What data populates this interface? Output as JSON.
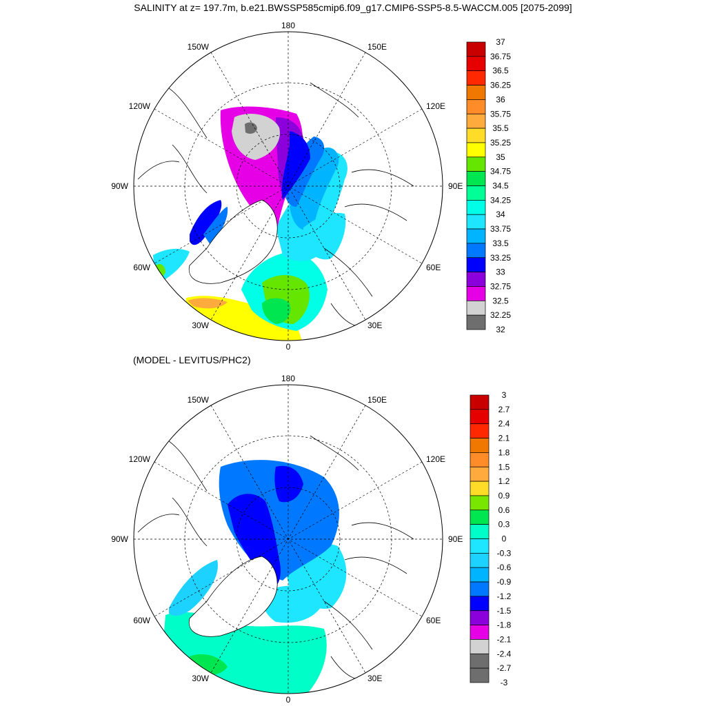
{
  "title": "SALINITY at z= 197.7m, b.e21.BWSSP585cmip6.f09_g17.CMIP6-SSP5-8.5-WACCM.005 [2075-2099]",
  "subtitle": "(MODEL - LEVITUS/PHC2)",
  "longitude_labels": {
    "top": "180",
    "bottom": "0",
    "left": "90W",
    "right": "90E",
    "upper_left_1": "150W",
    "upper_left_2": "120W",
    "upper_right_1": "150E",
    "upper_right_2": "120E",
    "lower_left_1": "60W",
    "lower_left_2": "30W",
    "lower_right_1": "60E",
    "lower_right_2": "30E"
  },
  "colorbar_top": {
    "labels": [
      "37",
      "36.75",
      "36.5",
      "36.25",
      "36",
      "35.75",
      "35.5",
      "35.25",
      "35",
      "34.75",
      "34.5",
      "34.25",
      "34",
      "33.75",
      "33.5",
      "33.25",
      "33",
      "32.75",
      "32.5",
      "32.25",
      "32"
    ],
    "colors": [
      "#c80000",
      "#e60000",
      "#ff2800",
      "#f07800",
      "#ff8c28",
      "#ffaa3c",
      "#ffdc28",
      "#ffff00",
      "#64e600",
      "#00e650",
      "#00ff96",
      "#00ffe6",
      "#1ee6ff",
      "#00b4ff",
      "#0078ff",
      "#0000ff",
      "#8c00dc",
      "#e600e6",
      "#d2d2d2",
      "#6e6e6e"
    ]
  },
  "colorbar_bottom": {
    "labels": [
      "3",
      "2.7",
      "2.4",
      "2.1",
      "1.8",
      "1.5",
      "1.2",
      "0.9",
      "0.6",
      "0.3",
      "0",
      "-0.3",
      "-0.6",
      "-0.9",
      "-1.2",
      "-1.5",
      "-1.8",
      "-2.1",
      "-2.4",
      "-2.7",
      "-3"
    ],
    "colors": [
      "#c80000",
      "#e60000",
      "#ff2800",
      "#f07800",
      "#ff8c28",
      "#ffaa3c",
      "#ffdc28",
      "#78e600",
      "#00e650",
      "#00ffc8",
      "#1ee6ff",
      "#1ed2ff",
      "#00b4ff",
      "#0078ff",
      "#0000ff",
      "#8c00dc",
      "#e600e6",
      "#d2d2d2",
      "#6e6e6e",
      "#6e6e6e"
    ]
  }
}
